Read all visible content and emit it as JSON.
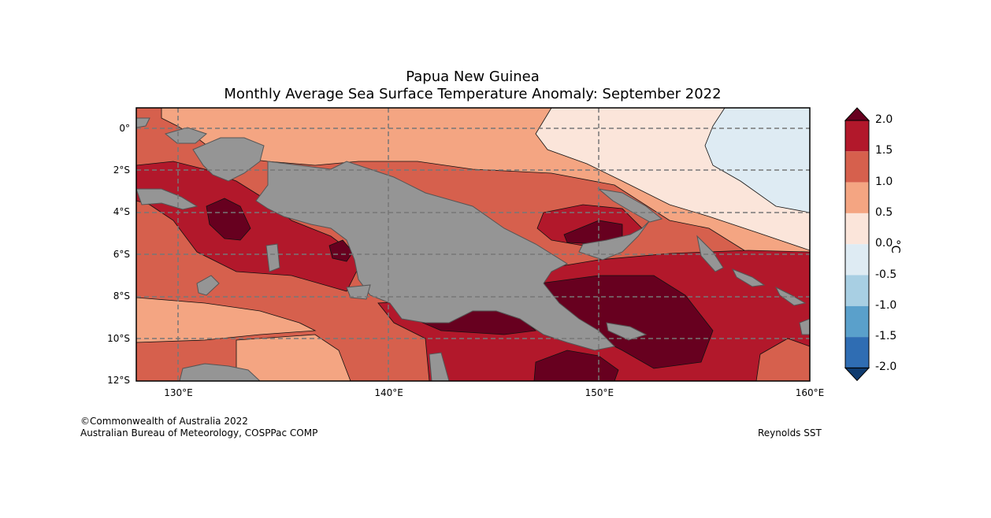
{
  "header": {
    "title": "Papua New Guinea",
    "subtitle": "Monthly Average Sea Surface Temperature Anomaly: September 2022"
  },
  "map": {
    "lon_range": [
      128,
      160
    ],
    "lat_range": [
      -12,
      1
    ],
    "lat_ticks": [
      {
        "value": 0,
        "label": "0°"
      },
      {
        "value": -2,
        "label": "2°S"
      },
      {
        "value": -4,
        "label": "4°S"
      },
      {
        "value": -6,
        "label": "6°S"
      },
      {
        "value": -8,
        "label": "8°S"
      },
      {
        "value": -10,
        "label": "10°S"
      },
      {
        "value": -12,
        "label": "12°S"
      }
    ],
    "lon_ticks": [
      {
        "value": 130,
        "label": "130°E"
      },
      {
        "value": 140,
        "label": "140°E"
      },
      {
        "value": 150,
        "label": "150°E"
      },
      {
        "value": 160,
        "label": "160°E"
      }
    ],
    "land_color": "#959595",
    "grid": "dashed"
  },
  "colorbar": {
    "unit": "°C",
    "ticks": [
      "2.0",
      "1.5",
      "1.0",
      "0.5",
      "0.0",
      "-0.5",
      "-1.0",
      "-1.5",
      "-2.0"
    ],
    "bins": [
      {
        "range": "above 2.0",
        "color": "#67001f"
      },
      {
        "range": "1.5 to 2.0",
        "color": "#b2182b"
      },
      {
        "range": "1.0 to 1.5",
        "color": "#d6604d"
      },
      {
        "range": "0.5 to 1.0",
        "color": "#f4a582"
      },
      {
        "range": "0.0 to 0.5",
        "color": "#fbe5da"
      },
      {
        "range": "-0.5 to 0.0",
        "color": "#deebf3"
      },
      {
        "range": "-1.0 to -0.5",
        "color": "#a8cfe3"
      },
      {
        "range": "-1.5 to -1.0",
        "color": "#5aa0cb"
      },
      {
        "range": "-2.0 to -1.5",
        "color": "#2f6db3"
      },
      {
        "range": "below -2.0",
        "color": "#0f3b6f"
      }
    ]
  },
  "footer": {
    "copyright": "©Commonwealth of Australia 2022",
    "agency": "Australian Bureau of Meteorology, COSPPac COMP",
    "source": "Reynolds SST"
  }
}
